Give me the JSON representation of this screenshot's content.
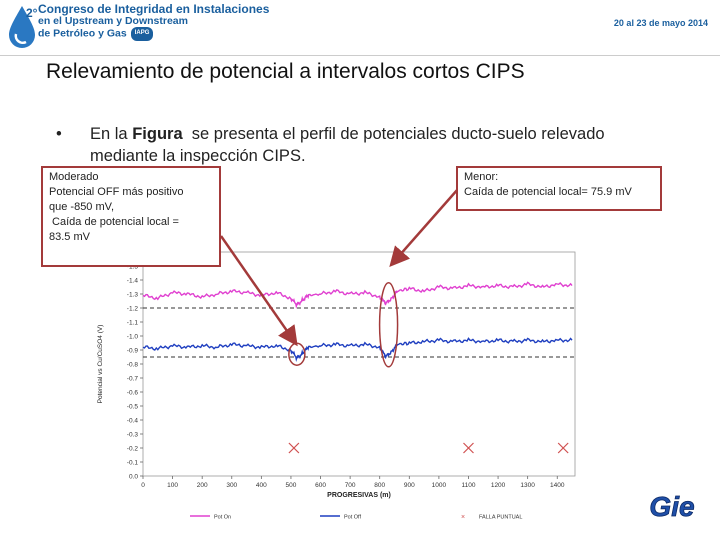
{
  "header": {
    "badge_number": "2°",
    "lines": [
      "Congreso de Integridad en Instalaciones",
      "en el Upstream y Downstream",
      "de Petróleo y Gas"
    ],
    "badge": "IAPG",
    "date": "20 al 23 de mayo 2014",
    "colors": {
      "brand_blue": "#1a5f9e"
    }
  },
  "slide": {
    "title": "Relevamiento de potencial a intervalos cortos CIPS",
    "bullet_prefix": "En la ",
    "bullet_bold": "Figura",
    "bullet_line1_rest": "  se presenta el perfil de potenciales ducto-suelo relevado",
    "bullet_line2": "mediante la inspección CIPS."
  },
  "notes": {
    "left": [
      "Moderado",
      "Potencial OFF más positivo",
      "que -850 mV,",
      " Caída de potencial local =",
      "83.5 mV"
    ],
    "right": [
      "Menor:",
      "Caída de potencial local= 75.9 mV"
    ]
  },
  "logo_text": "Gie",
  "chart_data": {
    "type": "line",
    "xlabel": "PROGRESIVAS (m)",
    "ylabel": "Potencial vs Cu/CuSO4 (V)",
    "x_ticks": [
      0,
      100,
      200,
      300,
      400,
      500,
      600,
      700,
      800,
      900,
      1000,
      1100,
      1200,
      1300,
      1400
    ],
    "y_ticks": [
      -1.6,
      -1.5,
      -1.4,
      -1.3,
      -1.2,
      -1.1,
      -1.0,
      -0.9,
      -0.8,
      -0.7,
      -0.6,
      -0.5,
      -0.4,
      -0.3,
      -0.2,
      -0.1,
      0.0
    ],
    "y_tick_labels": [
      "-1.6",
      "-1.5",
      "-1.4",
      "-1.3",
      "-1.2",
      "-1.1",
      "-1.0",
      "-0.9",
      "-0.8",
      "-0.7",
      "-0.6",
      "-0.5",
      "-0.4",
      "-0.3",
      "-0.2",
      "-0.1",
      "0.0"
    ],
    "xlim": [
      0,
      1460
    ],
    "ylim_top": -1.6,
    "ylim_bottom": 0.0,
    "reference_lines": [
      -1.2,
      -0.85
    ],
    "series": [
      {
        "name": "Pot On",
        "color": "#e040d0",
        "x": [
          0,
          50,
          100,
          150,
          200,
          250,
          300,
          350,
          400,
          450,
          500,
          520,
          540,
          560,
          600,
          650,
          700,
          750,
          800,
          820,
          840,
          860,
          900,
          950,
          1000,
          1050,
          1100,
          1150,
          1200,
          1250,
          1300,
          1350,
          1400,
          1450
        ],
        "y": [
          -1.29,
          -1.27,
          -1.31,
          -1.3,
          -1.28,
          -1.3,
          -1.32,
          -1.31,
          -1.29,
          -1.31,
          -1.27,
          -1.22,
          -1.26,
          -1.29,
          -1.3,
          -1.32,
          -1.3,
          -1.31,
          -1.28,
          -1.23,
          -1.27,
          -1.32,
          -1.34,
          -1.32,
          -1.35,
          -1.34,
          -1.36,
          -1.35,
          -1.36,
          -1.35,
          -1.37,
          -1.35,
          -1.37,
          -1.36
        ]
      },
      {
        "name": "Pot Off",
        "color": "#1f3fc0",
        "x": [
          0,
          50,
          100,
          150,
          200,
          250,
          300,
          350,
          400,
          450,
          500,
          520,
          540,
          560,
          600,
          650,
          700,
          750,
          800,
          820,
          840,
          860,
          900,
          950,
          1000,
          1050,
          1100,
          1150,
          1200,
          1250,
          1300,
          1350,
          1400,
          1450
        ],
        "y": [
          -0.92,
          -0.91,
          -0.93,
          -0.92,
          -0.93,
          -0.92,
          -0.94,
          -0.93,
          -0.92,
          -0.93,
          -0.9,
          -0.84,
          -0.88,
          -0.92,
          -0.93,
          -0.94,
          -0.93,
          -0.94,
          -0.92,
          -0.85,
          -0.89,
          -0.94,
          -0.95,
          -0.96,
          -0.97,
          -0.96,
          -0.97,
          -0.96,
          -0.97,
          -0.96,
          -0.97,
          -0.96,
          -0.97,
          -0.97
        ]
      },
      {
        "name": "FALLA PUNTUAL",
        "color": "#d05050",
        "marker": "x",
        "x": [
          510,
          1100,
          1420
        ],
        "y": [
          -0.2,
          -0.2,
          -0.2
        ]
      }
    ],
    "legend": [
      "Pot On",
      "Pot Off",
      "FALLA PUNTUAL"
    ],
    "legend_position": "bottom",
    "colors": {
      "ref_line": "#333333",
      "arrow": "#a33a3a",
      "ellipse": "#a33a3a"
    }
  }
}
